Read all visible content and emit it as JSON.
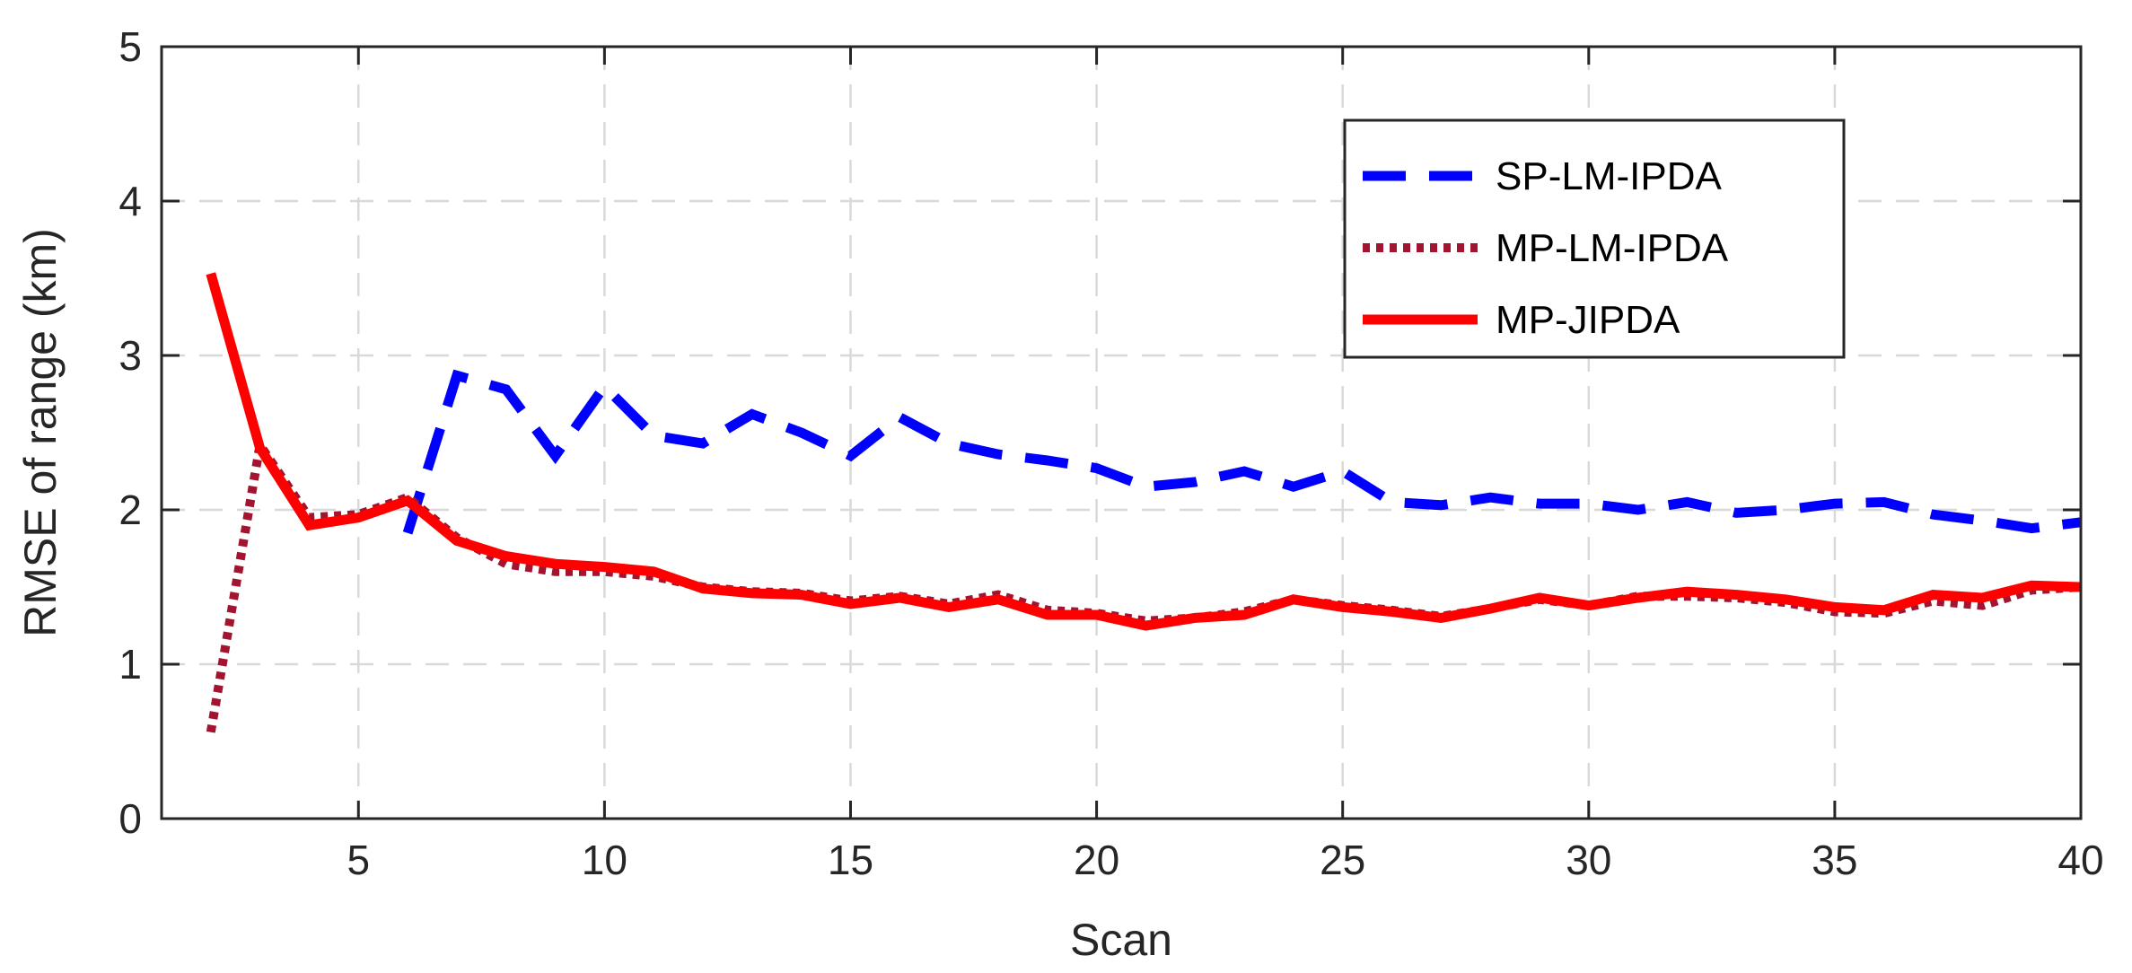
{
  "chart_data": {
    "type": "line",
    "xlabel": "Scan",
    "ylabel": "RMSE of range (km)",
    "xlim": [
      1,
      40
    ],
    "ylim": [
      0,
      5
    ],
    "xticks": [
      5,
      10,
      15,
      20,
      25,
      30,
      35,
      40
    ],
    "yticks": [
      0,
      1,
      2,
      3,
      4,
      5
    ],
    "grid": true,
    "legend_position": "top-right",
    "series": [
      {
        "name": "SP-LM-IPDA",
        "color": "#0000ff",
        "style": "dashed",
        "x": [
          6,
          7,
          8,
          9,
          10,
          11,
          12,
          13,
          14,
          15,
          16,
          17,
          18,
          19,
          20,
          21,
          22,
          23,
          24,
          25,
          26,
          27,
          28,
          29,
          30,
          31,
          32,
          33,
          34,
          35,
          36,
          37,
          38,
          39,
          40
        ],
        "values": [
          1.85,
          2.87,
          2.78,
          2.35,
          2.8,
          2.48,
          2.43,
          2.62,
          2.5,
          2.35,
          2.6,
          2.43,
          2.36,
          2.32,
          2.27,
          2.15,
          2.18,
          2.25,
          2.15,
          2.25,
          2.05,
          2.03,
          2.08,
          2.04,
          2.04,
          2.0,
          2.05,
          1.98,
          2.0,
          2.04,
          2.05,
          1.97,
          1.93,
          1.88,
          1.92
        ]
      },
      {
        "name": "MP-LM-IPDA",
        "color": "#a2142f",
        "style": "dotted",
        "x": [
          2,
          3,
          4,
          5,
          6,
          7,
          8,
          9,
          10,
          11,
          12,
          13,
          14,
          15,
          16,
          17,
          18,
          19,
          20,
          21,
          22,
          23,
          24,
          25,
          26,
          27,
          28,
          29,
          30,
          31,
          32,
          33,
          34,
          35,
          36,
          37,
          38,
          39,
          40
        ],
        "values": [
          0.56,
          2.42,
          1.95,
          1.97,
          2.08,
          1.82,
          1.65,
          1.6,
          1.6,
          1.57,
          1.5,
          1.47,
          1.46,
          1.41,
          1.44,
          1.39,
          1.45,
          1.35,
          1.33,
          1.28,
          1.3,
          1.34,
          1.42,
          1.38,
          1.35,
          1.31,
          1.36,
          1.42,
          1.38,
          1.44,
          1.44,
          1.43,
          1.4,
          1.34,
          1.33,
          1.41,
          1.38,
          1.48,
          1.5
        ]
      },
      {
        "name": "MP-JIPDA",
        "color": "#ff0000",
        "style": "solid",
        "x": [
          2,
          3,
          4,
          5,
          6,
          7,
          8,
          9,
          10,
          11,
          12,
          13,
          14,
          15,
          16,
          17,
          18,
          19,
          20,
          21,
          22,
          23,
          24,
          25,
          26,
          27,
          28,
          29,
          30,
          31,
          32,
          33,
          34,
          35,
          36,
          37,
          38,
          39,
          40
        ],
        "values": [
          3.53,
          2.4,
          1.9,
          1.95,
          2.06,
          1.8,
          1.7,
          1.65,
          1.63,
          1.6,
          1.49,
          1.46,
          1.45,
          1.39,
          1.43,
          1.37,
          1.42,
          1.32,
          1.32,
          1.25,
          1.3,
          1.32,
          1.42,
          1.37,
          1.34,
          1.3,
          1.36,
          1.43,
          1.38,
          1.43,
          1.47,
          1.45,
          1.42,
          1.37,
          1.35,
          1.45,
          1.43,
          1.51,
          1.5
        ]
      }
    ]
  }
}
